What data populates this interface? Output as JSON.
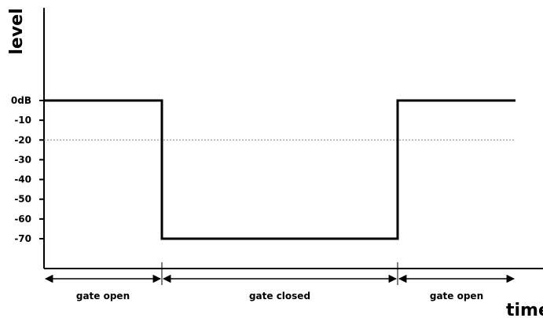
{
  "chart_data": {
    "type": "line",
    "title": "",
    "xlabel": "time",
    "ylabel": "level",
    "y_ticks": [
      "0dB",
      "-10",
      "-20",
      "-30",
      "-40",
      "-50",
      "-60",
      "-70"
    ],
    "ylim": [
      -70,
      0
    ],
    "threshold": -20,
    "series": [
      {
        "x": [
          0,
          1,
          1,
          3,
          3,
          4
        ],
        "y": [
          0,
          0,
          -70,
          -70,
          0,
          0
        ]
      }
    ],
    "regions": [
      {
        "label": "gate open",
        "start": 0,
        "end": 1
      },
      {
        "label": "gate closed",
        "start": 1,
        "end": 3
      },
      {
        "label": "gate open",
        "start": 3,
        "end": 4
      }
    ],
    "colors": {
      "line": "#000000",
      "threshold": "#888888"
    }
  }
}
